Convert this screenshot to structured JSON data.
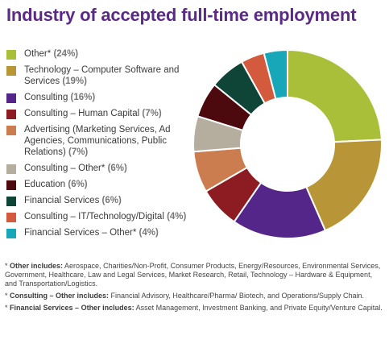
{
  "chart_data": {
    "type": "pie",
    "title": "Industry of accepted full-time employment",
    "slices": [
      {
        "label": "Other*",
        "pct_text": "(24%)",
        "value": 24,
        "color": "#a9bf3a"
      },
      {
        "label": "Technology – Computer Software and Services",
        "pct_text": "(19%)",
        "value": 19,
        "color": "#b89536"
      },
      {
        "label": "Consulting",
        "pct_text": "(16%)",
        "value": 16,
        "color": "#55268a"
      },
      {
        "label": "Consulting – Human Capital",
        "pct_text": "(7%)",
        "value": 7,
        "color": "#8d1c22"
      },
      {
        "label": "Advertising (Marketing Services, Ad Agencies, Communications, Public Relations)",
        "pct_text": "(7%)",
        "value": 7,
        "color": "#cc7d50"
      },
      {
        "label": "Consulting – Other*",
        "pct_text": "(6%)",
        "value": 6,
        "color": "#b5ae9e"
      },
      {
        "label": "Education",
        "pct_text": "(6%)",
        "value": 6,
        "color": "#4c0a0e"
      },
      {
        "label": "Financial Services",
        "pct_text": "(6%)",
        "value": 6,
        "color": "#0e4536"
      },
      {
        "label": "Consulting – IT/Technology/Digital",
        "pct_text": "(4%)",
        "value": 4,
        "color": "#d35a3c"
      },
      {
        "label": "Financial Services – Other*",
        "pct_text": "(4%)",
        "value": 4,
        "color": "#17a7b8"
      }
    ]
  },
  "footnotes": [
    {
      "marker": "* ",
      "label": "Other includes:",
      "text": " Aerospace, Charities/Non-Profit, Consumer Products, Energy/Resources, Environmental Services, Government, Healthcare, Law and Legal Services, Market Research, Retail, Technology – Hardware & Equipment, and Transportation/Logistics."
    },
    {
      "marker": "* ",
      "label": "Consulting – Other includes:",
      "text": " Financial Advisory, Healthcare/Pharma/ Biotech, and Operations/Supply Chain."
    },
    {
      "marker": "* ",
      "label": "Financial Services – Other includes:",
      "text": " Asset Management, Investment Banking, and Private Equity/Venture Capital."
    }
  ]
}
